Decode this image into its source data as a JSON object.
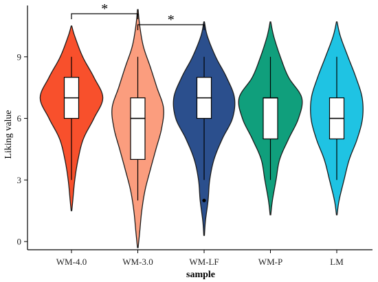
{
  "chart_data": {
    "type": "violin",
    "xlabel": "sample",
    "ylabel": "Liking value",
    "ylim": [
      -0.4,
      11.5
    ],
    "yticks": [
      0,
      3,
      6,
      9
    ],
    "categories": [
      "WM-4.0",
      "WM-3.0",
      "WM-LF",
      "WM-P",
      "LM"
    ],
    "groups": [
      {
        "name": "WM-4.0",
        "color": "#f8502c",
        "density_min": 1.5,
        "density_max": 10.5,
        "density": [
          [
            1.5,
            0.01
          ],
          [
            2,
            0.04
          ],
          [
            3,
            0.1
          ],
          [
            4,
            0.2
          ],
          [
            5,
            0.36
          ],
          [
            6,
            0.68
          ],
          [
            7,
            0.95
          ],
          [
            8,
            0.68
          ],
          [
            9,
            0.34
          ],
          [
            10,
            0.1
          ],
          [
            10.5,
            0.01
          ]
        ],
        "box": {
          "lower_whisker": 3,
          "q1": 6,
          "median": 7,
          "q3": 8,
          "upper_whisker": 9
        },
        "outliers": []
      },
      {
        "name": "WM-3.0",
        "color": "#fb9d7e",
        "density_min": -0.3,
        "density_max": 11.3,
        "density": [
          [
            -0.3,
            0.01
          ],
          [
            0.5,
            0.06
          ],
          [
            1.5,
            0.12
          ],
          [
            2.5,
            0.22
          ],
          [
            3.5,
            0.38
          ],
          [
            4.5,
            0.55
          ],
          [
            5.5,
            0.72
          ],
          [
            6.5,
            0.78
          ],
          [
            7.5,
            0.58
          ],
          [
            8.5,
            0.38
          ],
          [
            9.5,
            0.17
          ],
          [
            10.5,
            0.06
          ],
          [
            11.3,
            0.01
          ]
        ],
        "box": {
          "lower_whisker": 2,
          "q1": 4,
          "median": 6,
          "q3": 7,
          "upper_whisker": 9
        },
        "outliers": []
      },
      {
        "name": "WM-LF",
        "color": "#2b4f8d",
        "density_min": 0.3,
        "density_max": 10.7,
        "density": [
          [
            0.3,
            0.01
          ],
          [
            1,
            0.04
          ],
          [
            2,
            0.12
          ],
          [
            3,
            0.17
          ],
          [
            4,
            0.3
          ],
          [
            5,
            0.55
          ],
          [
            6,
            0.86
          ],
          [
            7,
            0.92
          ],
          [
            8,
            0.68
          ],
          [
            9,
            0.35
          ],
          [
            10,
            0.1
          ],
          [
            10.7,
            0.01
          ]
        ],
        "box": {
          "lower_whisker": 3,
          "q1": 6,
          "median": 7,
          "q3": 8,
          "upper_whisker": 9
        },
        "outliers": [
          2
        ]
      },
      {
        "name": "WM-P",
        "color": "#109f7c",
        "density_min": 1.3,
        "density_max": 10.7,
        "density": [
          [
            1.3,
            0.01
          ],
          [
            2,
            0.06
          ],
          [
            3,
            0.17
          ],
          [
            4,
            0.28
          ],
          [
            5,
            0.55
          ],
          [
            6,
            0.85
          ],
          [
            7,
            0.95
          ],
          [
            8,
            0.55
          ],
          [
            9,
            0.3
          ],
          [
            10,
            0.1
          ],
          [
            10.7,
            0.01
          ]
        ],
        "box": {
          "lower_whisker": 3,
          "q1": 5,
          "median": 7,
          "q3": 7,
          "upper_whisker": 9
        },
        "outliers": []
      },
      {
        "name": "LM",
        "color": "#1fc3e3",
        "density_min": 1.3,
        "density_max": 10.7,
        "density": [
          [
            1.3,
            0.01
          ],
          [
            2,
            0.07
          ],
          [
            3,
            0.22
          ],
          [
            4,
            0.38
          ],
          [
            5,
            0.62
          ],
          [
            6,
            0.78
          ],
          [
            7,
            0.77
          ],
          [
            8,
            0.58
          ],
          [
            9,
            0.34
          ],
          [
            10,
            0.11
          ],
          [
            10.7,
            0.01
          ]
        ],
        "box": {
          "lower_whisker": 3,
          "q1": 5,
          "median": 6,
          "q3": 7,
          "upper_whisker": 9
        },
        "outliers": []
      }
    ],
    "significance": [
      {
        "from": "WM-4.0",
        "to": "WM-3.0",
        "label": "*"
      },
      {
        "from": "WM-3.0",
        "to": "WM-LF",
        "label": "*"
      }
    ]
  }
}
